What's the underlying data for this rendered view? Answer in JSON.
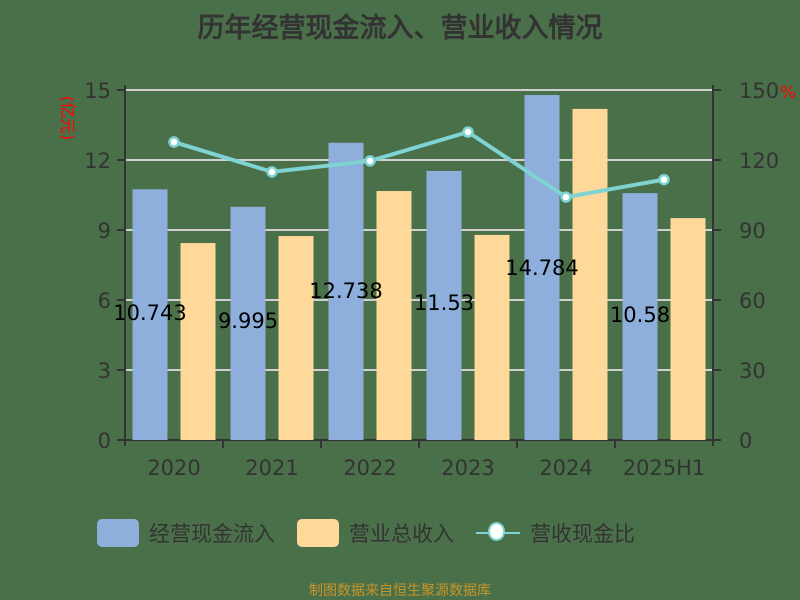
{
  "title": "历年经营现金流入、营业收入情况",
  "left_axis_unit": "(亿元)",
  "right_axis_unit": "%",
  "source": "制图数据来自恒生聚源数据库",
  "legend": [
    {
      "label": "经营现金流入",
      "color": "#8eaedb",
      "type": "bar"
    },
    {
      "label": "营业总收入",
      "color": "#ffd99a",
      "type": "bar"
    },
    {
      "label": "营收现金比",
      "color": "#7fd3d3",
      "type": "line"
    }
  ],
  "colors": {
    "background": "#4a7049",
    "grid": "#d0d0d0",
    "axis": "#333333",
    "unit": "#ff0000",
    "source": "#c8952a"
  },
  "chart_data": {
    "type": "bar",
    "title": "历年经营现金流入、营业收入情况",
    "categories": [
      "2020",
      "2021",
      "2022",
      "2023",
      "2024",
      "2025H1"
    ],
    "series": [
      {
        "name": "经营现金流入",
        "axis": "left",
        "type": "bar",
        "values": [
          10.743,
          9.995,
          12.738,
          11.53,
          14.784,
          10.58
        ],
        "labels": [
          "10.743",
          "9.995",
          "12.738",
          "11.53",
          "14.784",
          "10.58"
        ]
      },
      {
        "name": "营业总收入",
        "axis": "left",
        "type": "bar",
        "values": [
          8.44,
          8.74,
          10.67,
          8.79,
          14.19,
          9.51
        ]
      },
      {
        "name": "营收现金比",
        "axis": "right",
        "type": "line",
        "values": [
          127.7,
          114.9,
          119.6,
          132.0,
          104.1,
          111.6
        ]
      }
    ],
    "ylabel": "(亿元)",
    "ylim": [
      0,
      15
    ],
    "yticks": [
      0,
      3,
      6,
      9,
      12,
      15
    ],
    "y2label": "%",
    "y2lim": [
      0,
      150
    ],
    "y2ticks": [
      0,
      30,
      60,
      90,
      120,
      150
    ],
    "grid": true,
    "legend_position": "bottom"
  }
}
